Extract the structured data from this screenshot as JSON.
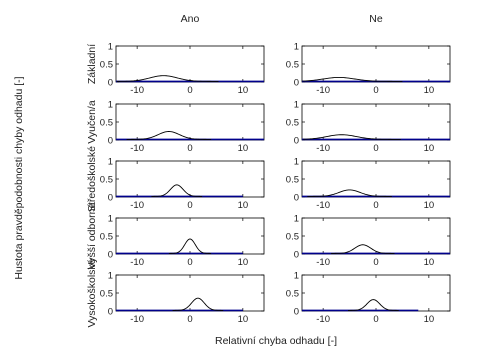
{
  "figure": {
    "ylabel": "Hustota pravděpodobnosti chyby odhadu [-]",
    "xlabel": "Relativní chyba odhadu [-]"
  },
  "chart_data": {
    "type": "line",
    "columns": [
      "Ano",
      "Ne"
    ],
    "rows": [
      "Základní",
      "Vyučen/a",
      "Středoškolské",
      "Vyšší odborné",
      "Vysokoškolské"
    ],
    "xlim": [
      -14,
      14
    ],
    "ylim": [
      0,
      1
    ],
    "xticks": [
      -10,
      0,
      10
    ],
    "yticks": [
      0,
      0.5,
      1
    ],
    "xtick_labels": [
      "-10",
      "0",
      "10"
    ],
    "ytick_labels": [
      "0",
      "0.5",
      "1"
    ],
    "line_color": "#000000",
    "baseline_color": "#00008b",
    "panels": [
      {
        "row": 0,
        "col": 0,
        "mean": -5.0,
        "sd": 2.6,
        "peak": 0.16,
        "base_from": -14,
        "base_to": 14
      },
      {
        "row": 0,
        "col": 1,
        "mean": -7.0,
        "sd": 3.0,
        "peak": 0.11,
        "base_from": -14,
        "base_to": 14
      },
      {
        "row": 1,
        "col": 0,
        "mean": -4.0,
        "sd": 2.0,
        "peak": 0.22,
        "base_from": -14,
        "base_to": 14
      },
      {
        "row": 1,
        "col": 1,
        "mean": -6.5,
        "sd": 2.8,
        "peak": 0.13,
        "base_from": -14,
        "base_to": 14
      },
      {
        "row": 2,
        "col": 0,
        "mean": -2.5,
        "sd": 1.2,
        "peak": 0.32,
        "base_from": -14,
        "base_to": 10
      },
      {
        "row": 2,
        "col": 1,
        "mean": -5.0,
        "sd": 2.0,
        "peak": 0.18,
        "base_from": -14,
        "base_to": 14
      },
      {
        "row": 3,
        "col": 0,
        "mean": 0.0,
        "sd": 1.0,
        "peak": 0.4,
        "base_from": -14,
        "base_to": 10
      },
      {
        "row": 3,
        "col": 1,
        "mean": -2.5,
        "sd": 1.5,
        "peak": 0.24,
        "base_from": -14,
        "base_to": 14
      },
      {
        "row": 4,
        "col": 0,
        "mean": 1.5,
        "sd": 1.2,
        "peak": 0.34,
        "base_from": -14,
        "base_to": 10
      },
      {
        "row": 4,
        "col": 1,
        "mean": -0.5,
        "sd": 1.2,
        "peak": 0.3,
        "base_from": -14,
        "base_to": 8
      }
    ]
  }
}
